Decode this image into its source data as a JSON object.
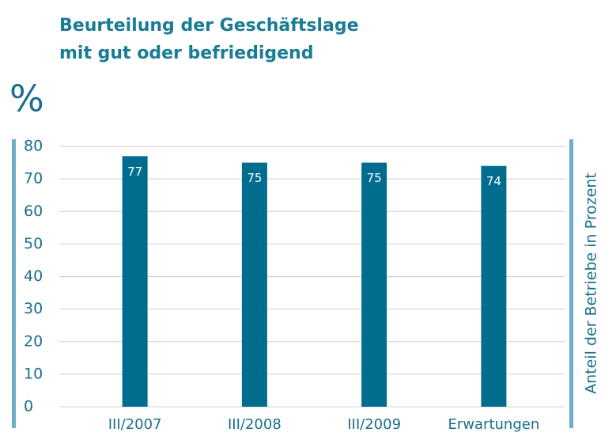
{
  "chart_data": {
    "type": "bar",
    "title": [
      "Beurteilung der Geschäftslage",
      "mit gut oder befriedigend"
    ],
    "y_label": "%",
    "y2_label": "Anteil der Betriebe in Prozent",
    "categories": [
      "III/2007",
      "III/2008",
      "III/2009",
      "Erwartungen"
    ],
    "values": [
      77,
      75,
      75,
      74
    ],
    "color": "#006d8f",
    "ylim": [
      0,
      80
    ],
    "yticks": [
      0,
      10,
      20,
      30,
      40,
      50,
      60,
      70,
      80
    ],
    "grid": true
  }
}
